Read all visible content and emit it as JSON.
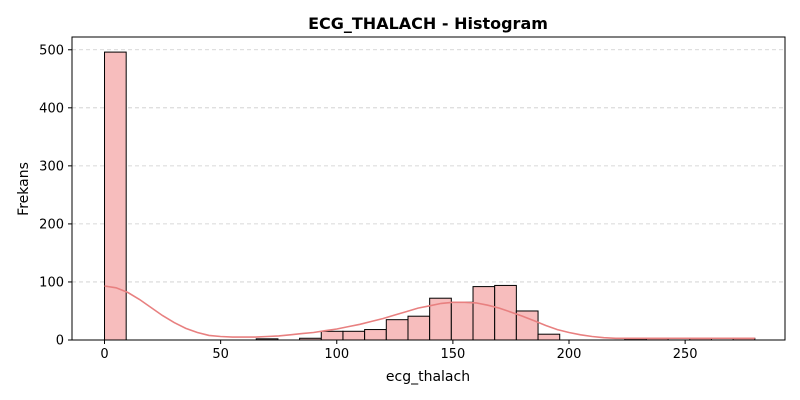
{
  "chart_data": {
    "type": "bar",
    "subtype": "histogram",
    "title": "ECG_THALACH - Histogram",
    "xlabel": "ecg_thalach",
    "ylabel": "Frekans",
    "xlim": [
      -14,
      293
    ],
    "ylim": [
      0,
      522
    ],
    "xticks": [
      0,
      50,
      100,
      150,
      200,
      250
    ],
    "yticks": [
      0,
      100,
      200,
      300,
      400,
      500
    ],
    "grid": "y-dashed",
    "bar_color": "#f7bdbd",
    "bar_edge_color": "#000000",
    "kde_color": "#e88080",
    "bin_width": 9.33,
    "bins": [
      {
        "x0": 0.0,
        "x1": 9.33,
        "count": 496
      },
      {
        "x0": 65.33,
        "x1": 74.67,
        "count": 2
      },
      {
        "x0": 84.0,
        "x1": 93.33,
        "count": 3
      },
      {
        "x0": 93.33,
        "x1": 102.67,
        "count": 15
      },
      {
        "x0": 102.67,
        "x1": 112.0,
        "count": 15
      },
      {
        "x0": 112.0,
        "x1": 121.33,
        "count": 18
      },
      {
        "x0": 121.33,
        "x1": 130.67,
        "count": 35
      },
      {
        "x0": 130.67,
        "x1": 140.0,
        "count": 41
      },
      {
        "x0": 140.0,
        "x1": 149.33,
        "count": 72
      },
      {
        "x0": 149.33,
        "x1": 158.67,
        "count": 65
      },
      {
        "x0": 158.67,
        "x1": 168.0,
        "count": 92
      },
      {
        "x0": 168.0,
        "x1": 177.33,
        "count": 94
      },
      {
        "x0": 177.33,
        "x1": 186.67,
        "count": 50
      },
      {
        "x0": 186.67,
        "x1": 196.0,
        "count": 10
      },
      {
        "x0": 224.0,
        "x1": 233.33,
        "count": 2
      },
      {
        "x0": 233.33,
        "x1": 242.67,
        "count": 3
      },
      {
        "x0": 252.0,
        "x1": 261.33,
        "count": 3
      },
      {
        "x0": 270.67,
        "x1": 280.0,
        "count": 3
      }
    ],
    "kde": {
      "x": [
        0,
        5,
        10,
        15,
        20,
        25,
        30,
        35,
        40,
        45,
        50,
        55,
        60,
        65,
        70,
        75,
        80,
        85,
        90,
        95,
        100,
        105,
        110,
        115,
        120,
        125,
        130,
        135,
        140,
        145,
        150,
        155,
        160,
        165,
        170,
        175,
        180,
        185,
        190,
        195,
        200,
        205,
        210,
        215,
        220,
        225,
        230,
        235,
        240,
        245,
        250,
        255,
        260,
        265,
        270,
        275,
        280
      ],
      "y": [
        93,
        90,
        82,
        70,
        56,
        42,
        30,
        20,
        13,
        8,
        6,
        5,
        5,
        5,
        6,
        7,
        9,
        11,
        13,
        16,
        19,
        23,
        27,
        32,
        37,
        43,
        49,
        55,
        59,
        63,
        65,
        65,
        64,
        60,
        55,
        48,
        41,
        33,
        25,
        18,
        13,
        9,
        6,
        4,
        3,
        3,
        3,
        3,
        3,
        3,
        3,
        3,
        3,
        3,
        3,
        3,
        3
      ]
    }
  }
}
